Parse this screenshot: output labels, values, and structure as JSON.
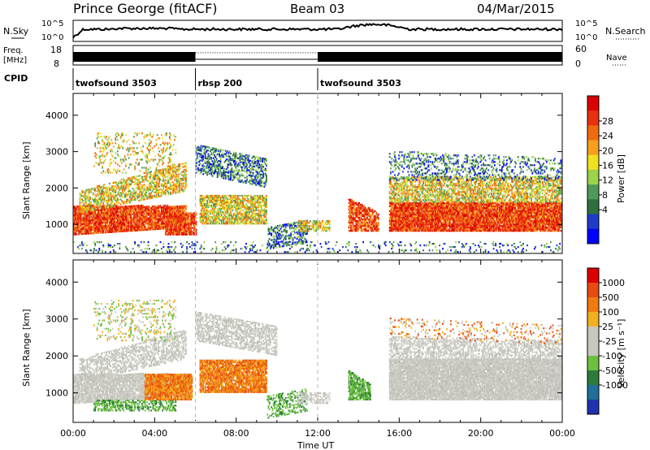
{
  "header": {
    "station": "Prince George (fitACF)",
    "beam": "Beam 03",
    "date": "04/Mar/2015"
  },
  "top_panel": {
    "left_label": "N.Sky",
    "right_label": "N.Search",
    "ticks_left": [
      "10^5",
      "10^0"
    ],
    "ticks_right": [
      "10^5",
      "10^0"
    ]
  },
  "freq_panel": {
    "left_label_1": "Freq.",
    "left_label_2": "[MHz]",
    "ticks_left": [
      "18",
      "8"
    ],
    "ticks_right": [
      "60",
      "0"
    ],
    "right_label": "Nave"
  },
  "cpid": {
    "label": "CPID",
    "segments": [
      {
        "name": "twofsound 3503",
        "start": 0,
        "end": 6
      },
      {
        "name": "rbsp 200",
        "start": 6,
        "end": 12
      },
      {
        "name": "twofsound 3503",
        "start": 12,
        "end": 24
      }
    ]
  },
  "power_panel": {
    "ylabel": "Slant Range [km]",
    "yticks": [
      "4000",
      "3000",
      "2000",
      "1000"
    ],
    "colorbar_label": "Power [dB]",
    "colorbar_ticks": [
      "28",
      "24",
      "20",
      "16",
      "12",
      "8",
      "4"
    ],
    "colors": [
      "#0000ff",
      "#1e3cc8",
      "#2f6f3f",
      "#4f9a5a",
      "#9bd34b",
      "#f0e020",
      "#f7a020",
      "#f06a10",
      "#e83010",
      "#dd0000"
    ]
  },
  "velocity_panel": {
    "ylabel": "Slant Range [km]",
    "yticks": [
      "4000",
      "3000",
      "2000",
      "1000"
    ],
    "colorbar_label": "Velocity [m s⁻¹]",
    "colorbar_ticks": [
      "1000",
      "500",
      "100",
      "25",
      "-25",
      "-100",
      "-500",
      "-1000"
    ],
    "colors": [
      "#2030b0",
      "#1e6f9a",
      "#2d7a3a",
      "#6cc040",
      "#c8c8c0",
      "#c8c8c0",
      "#f2b020",
      "#f07a10",
      "#e84a10",
      "#dd0000"
    ]
  },
  "xaxis": {
    "ticks": [
      "00:00",
      "04:00",
      "08:00",
      "12:00",
      "16:00",
      "20:00",
      "00:00"
    ],
    "label": "Time UT"
  },
  "chart_data": [
    {
      "type": "line",
      "title": "Prince George (fitACF) Beam 03 04/Mar/2015",
      "xlabel": "Time UT",
      "ylabel": "N.Sky",
      "x_range": [
        "00:00",
        "24:00"
      ],
      "note_series": [
        "N.Sky",
        "N.Search"
      ]
    },
    {
      "type": "heatmap",
      "quantity": "Power",
      "units": "dB",
      "xlabel": "Time UT",
      "ylabel": "Slant Range [km]",
      "x_range_hours": [
        0,
        24
      ],
      "y_range_km": [
        200,
        4600
      ],
      "color_range_db": [
        0,
        30
      ],
      "colorbar_ticks": [
        4,
        8,
        12,
        16,
        20,
        24,
        28
      ]
    },
    {
      "type": "heatmap",
      "quantity": "Velocity",
      "units": "m s^-1",
      "xlabel": "Time UT",
      "ylabel": "Slant Range [km]",
      "x_range_hours": [
        0,
        24
      ],
      "y_range_km": [
        200,
        4600
      ],
      "colorbar_ticks": [
        1000,
        500,
        100,
        25,
        -25,
        -100,
        -500,
        -1000
      ]
    }
  ]
}
